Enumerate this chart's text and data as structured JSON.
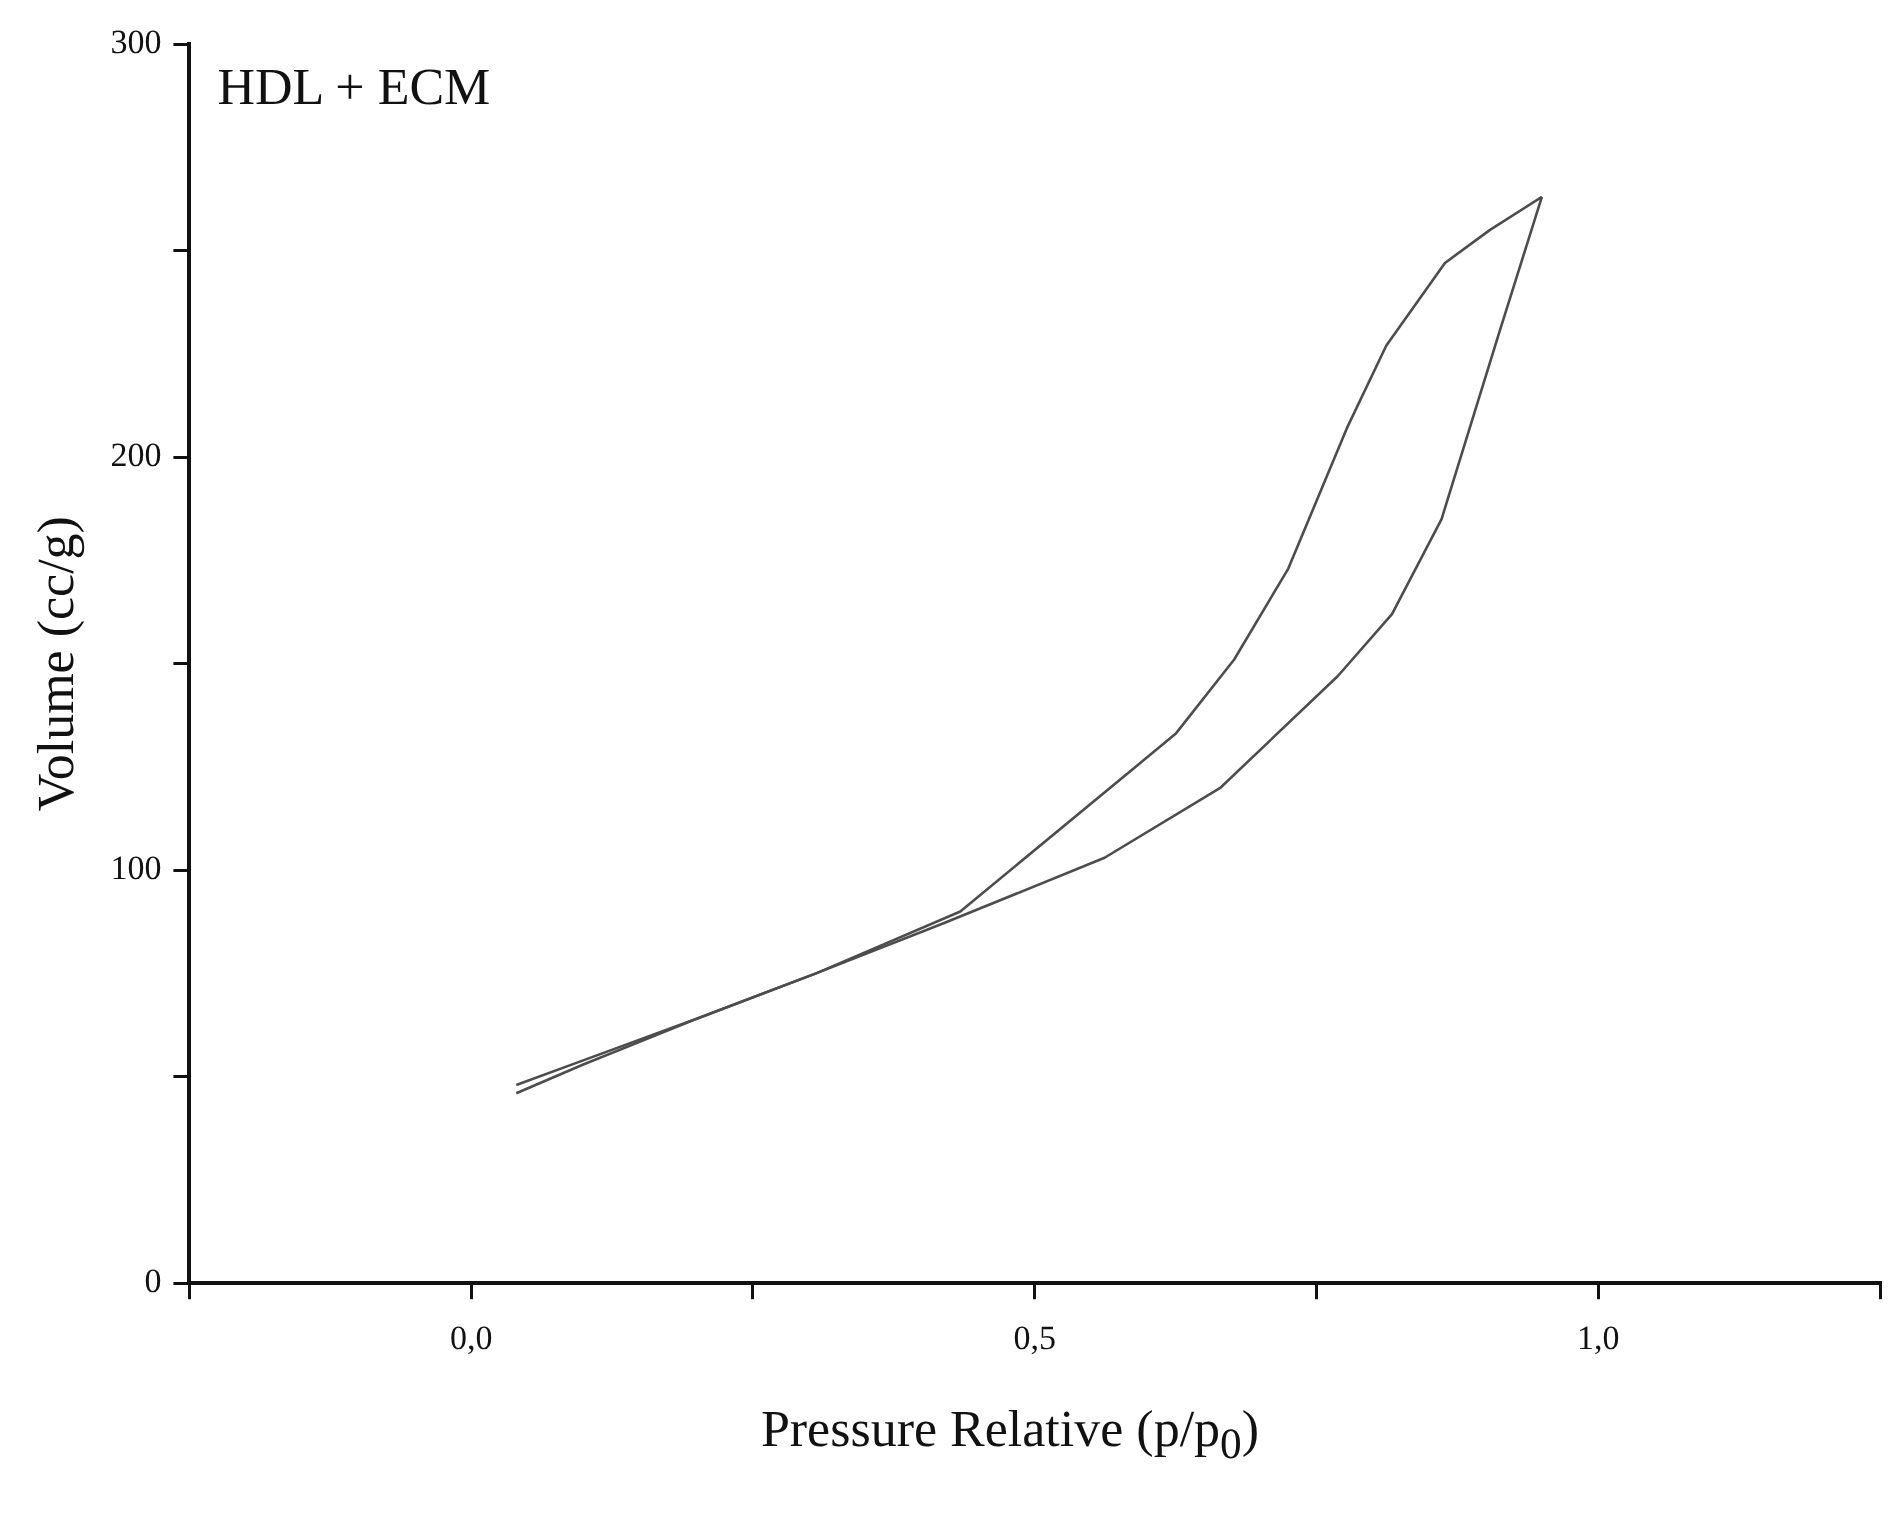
{
  "chart_data": {
    "type": "line",
    "xlabel": "Pressure Relative (p/p$_{0}$)",
    "ylabel": "Volume (cc/g)",
    "annotations": [
      "HDL + ECM"
    ],
    "xlim": [
      -0.25,
      1.25
    ],
    "ylim": [
      0,
      300
    ],
    "xticks": [
      {
        "value": -0.25,
        "label": null
      },
      {
        "value": 0,
        "label": "0,0"
      },
      {
        "value": 0.25,
        "label": null
      },
      {
        "value": 0.5,
        "label": "0,5"
      },
      {
        "value": 0.75,
        "label": null
      },
      {
        "value": 1.0,
        "label": "1,0"
      },
      {
        "value": 1.25,
        "label": null
      }
    ],
    "yticks": [
      0,
      {
        "value": 50,
        "label": null
      },
      100,
      {
        "value": 150,
        "label": null
      },
      200,
      {
        "value": 250,
        "label": null
      },
      300
    ],
    "grid": false,
    "legend": false,
    "series": [
      {
        "color": "#4d4d4d",
        "x": [
          0.04,
          0.1,
          0.2,
          0.306,
          0.418,
          0.562,
          0.665,
          0.769,
          0.817,
          0.861,
          0.912,
          0.95
        ],
        "values": [
          46,
          53,
          64,
          75,
          87,
          103,
          120,
          147,
          162,
          185,
          230,
          263
        ]
      },
      {
        "color": "#4d4d4d",
        "x": [
          0.95,
          0.904,
          0.864,
          0.812,
          0.777,
          0.725,
          0.677,
          0.625,
          0.434,
          0.306,
          0.2,
          0.1,
          0.04
        ],
        "values": [
          263,
          255,
          247,
          227,
          207,
          173,
          151,
          133,
          90,
          75,
          64,
          54,
          48
        ]
      }
    ]
  }
}
